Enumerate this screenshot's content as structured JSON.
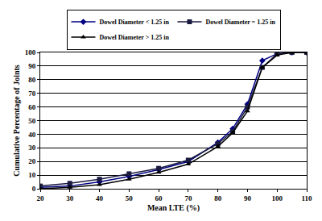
{
  "chart_data": {
    "type": "line",
    "x_label": "Mean LTE (%)",
    "y_label": "Cumulative Percentage of Joints",
    "x": [
      20,
      30,
      40,
      50,
      60,
      70,
      80,
      85,
      90,
      95,
      100,
      105,
      110
    ],
    "series": [
      {
        "name": "Dowel Diameter < 1.25 in",
        "color": "#000080",
        "marker": "diamond",
        "line_style": "solid",
        "values": [
          1,
          2,
          5,
          9,
          14,
          20,
          34,
          44,
          62,
          94,
          99,
          100,
          100
        ]
      },
      {
        "name": "Dowel Diameter = 1.25 in",
        "color": "#1a1a40",
        "marker": "square",
        "line_style": "solid",
        "values": [
          2,
          4,
          7,
          11,
          15,
          21,
          33,
          42,
          60,
          89,
          99,
          100,
          100
        ]
      },
      {
        "name": "Dowel Diameter > 1.25 in",
        "color": "#000000",
        "marker": "triangle-up",
        "line_style": "solid",
        "values": [
          0,
          1,
          3,
          7,
          12,
          18,
          31,
          41,
          57,
          89,
          98,
          100,
          100
        ]
      }
    ],
    "xlim": [
      20,
      110
    ],
    "xticks": [
      20,
      30,
      40,
      50,
      60,
      70,
      80,
      90,
      100,
      110
    ],
    "ylim": [
      0,
      100
    ],
    "yticks": [
      0,
      10,
      20,
      30,
      40,
      50,
      60,
      70,
      80,
      90,
      100
    ],
    "grid": true,
    "legend": "top"
  }
}
